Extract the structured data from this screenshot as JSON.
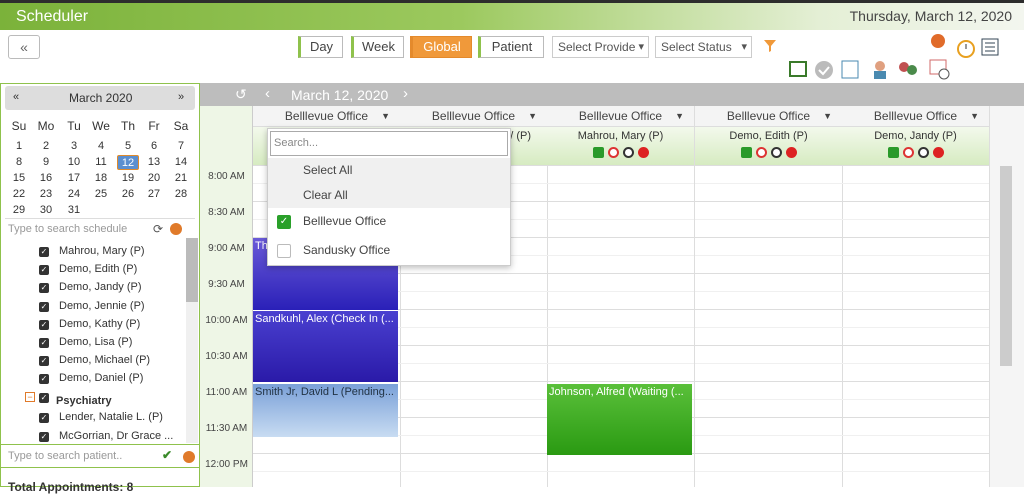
{
  "header": {
    "title": "Scheduler",
    "date": "Thursday, March 12, 2020"
  },
  "toolbar": {
    "views": [
      "Day",
      "Week",
      "Global",
      "Patient"
    ],
    "active_view": "Global",
    "selects": [
      "Select Provide",
      "Select Status"
    ]
  },
  "calendar": {
    "month": "March 2020",
    "weekdays": [
      "Su",
      "Mo",
      "Tu",
      "We",
      "Th",
      "Fr",
      "Sa"
    ],
    "weeks": [
      [
        1,
        2,
        3,
        4,
        5,
        6,
        7
      ],
      [
        8,
        9,
        10,
        11,
        12,
        13,
        14
      ],
      [
        15,
        16,
        17,
        18,
        19,
        20,
        21
      ],
      [
        22,
        23,
        24,
        25,
        26,
        27,
        28
      ],
      [
        29,
        30,
        31
      ]
    ],
    "selected": 12
  },
  "provider_search": {
    "placeholder": "Type to search schedule"
  },
  "providers": {
    "items": [
      "Mahrou, Mary (P)",
      "Demo, Edith (P)",
      "Demo, Jandy (P)",
      "Demo, Jennie (P)",
      "Demo, Kathy (P)",
      "Demo, Lisa (P)",
      "Demo, Michael (P)",
      "Demo, Daniel (P)"
    ],
    "group": "Psychiatry",
    "group_items": [
      "Lender, Natalie L. (P)",
      "McGorrian, Dr Grace ..."
    ]
  },
  "patient_search": {
    "placeholder": "Type to search patient.."
  },
  "total": "Total Appointments: 8",
  "schedule": {
    "date": "March 12, 2020",
    "columns": [
      {
        "office": "Belllevue Office"
      },
      {
        "office": "Belllevue Office",
        "provider": "/ (P)"
      },
      {
        "office": "Belllevue Office",
        "provider": "Mahrou, Mary (P)"
      },
      {
        "office": "Belllevue Office",
        "provider": "Demo, Edith (P)"
      },
      {
        "office": "Belllevue Office",
        "provider": "Demo, Jandy (P)"
      }
    ],
    "times": [
      "8:00 AM",
      "8:30 AM",
      "9:00 AM",
      "9:30 AM",
      "10:00 AM",
      "10:30 AM",
      "11:00 AM",
      "11:30 AM",
      "12:00 PM"
    ],
    "appointments": [
      {
        "text": "Th"
      },
      {
        "text": "Sandkuhl, Alex (Check In (..."
      },
      {
        "text": "Smith Jr, David L (Pending..."
      },
      {
        "text": "Johnson, Alfred (Waiting (..."
      }
    ]
  },
  "dropdown": {
    "search": "Search...",
    "select_all": "Select All",
    "clear_all": "Clear All",
    "options": [
      {
        "label": "Belllevue Office",
        "checked": true
      },
      {
        "label": "Sandusky Office",
        "checked": false
      }
    ]
  }
}
